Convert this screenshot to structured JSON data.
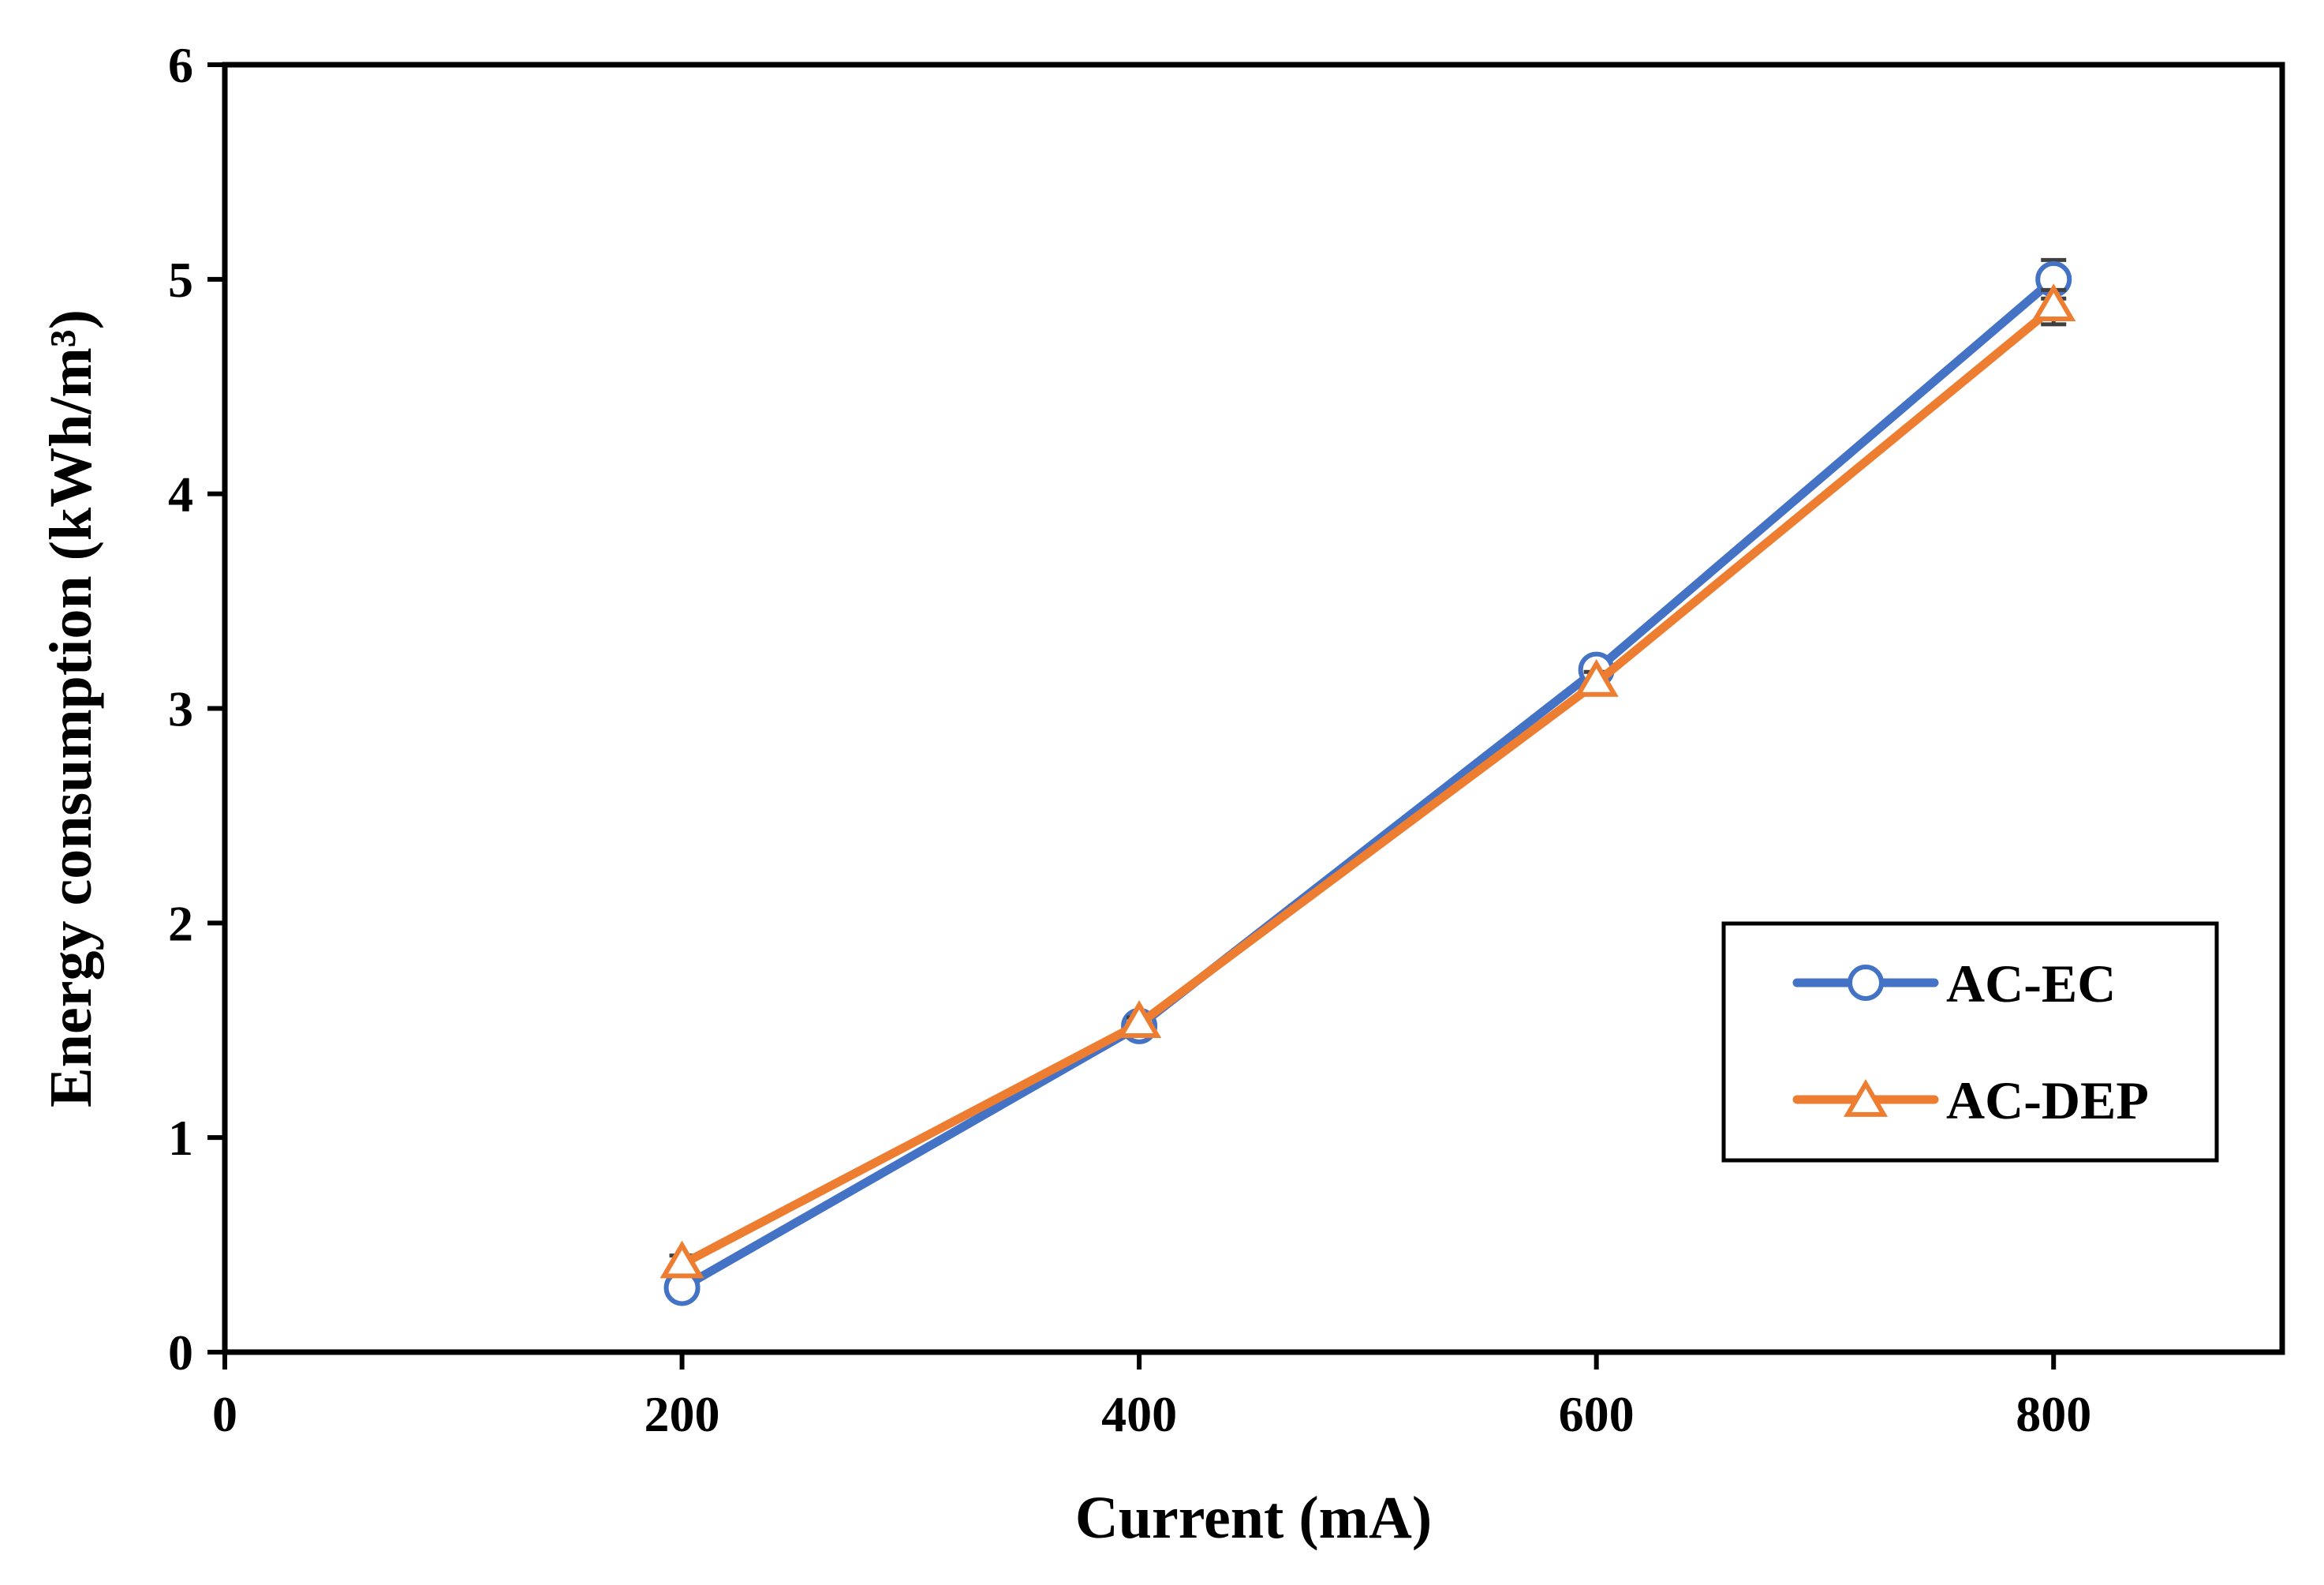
{
  "chart_data": {
    "type": "line",
    "title": "",
    "xlabel": "Current (mA)",
    "ylabel": "Energy consumption (kWh/m³)",
    "xlim": [
      0,
      900
    ],
    "ylim": [
      0,
      6
    ],
    "x_ticks": [
      0,
      200,
      400,
      600,
      800
    ],
    "y_ticks": [
      0,
      1,
      2,
      3,
      4,
      5,
      6
    ],
    "x_tick_labels": [
      "0",
      "200",
      "400",
      "600",
      "800"
    ],
    "y_tick_labels": [
      "0",
      "1",
      "2",
      "3",
      "4",
      "5",
      "6"
    ],
    "grid": false,
    "legend_position": "right",
    "series": [
      {
        "name": "AC-EC",
        "marker": "circle",
        "color": "#4472C4",
        "x": [
          200,
          400,
          600,
          800
        ],
        "values": [
          0.3,
          1.52,
          3.18,
          5.0
        ],
        "error": [
          0.05,
          0.03,
          0.04,
          0.09
        ]
      },
      {
        "name": "AC-DEP",
        "marker": "triangle",
        "color": "#ED7D31",
        "x": [
          200,
          400,
          600,
          800
        ],
        "values": [
          0.41,
          1.53,
          3.12,
          4.87
        ],
        "error": [
          0.04,
          0.03,
          0.05,
          0.08
        ]
      }
    ]
  }
}
